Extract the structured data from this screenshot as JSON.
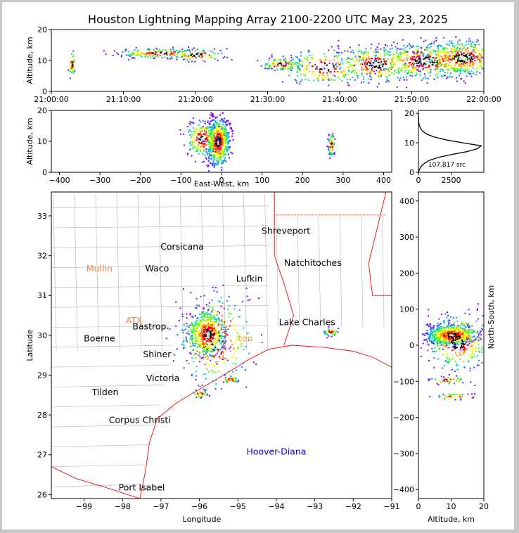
{
  "title": "Houston Lightning Mapping Array 2100-2200 UTC May 23, 2025",
  "chart_data": [
    {
      "id": "time-height",
      "type": "scatter",
      "xlabel": "",
      "ylabel": "Altitude, km",
      "x_ticks": [
        "21:00:00",
        "21:10:00",
        "21:20:00",
        "21:30:00",
        "21:40:00",
        "21:50:00",
        "22:00:00"
      ],
      "xlim": [
        0,
        60
      ],
      "ylim": [
        0,
        20
      ],
      "y_ticks": [
        0,
        10,
        20
      ],
      "clusters": [
        {
          "t": 2.8,
          "alt": 9,
          "spread_t": 0.2,
          "spread_alt": 2,
          "n": 40
        },
        {
          "t": 15,
          "alt": 12.5,
          "spread_t": 3,
          "spread_alt": 0.8,
          "n": 180
        },
        {
          "t": 20,
          "alt": 12,
          "spread_t": 2,
          "spread_alt": 1,
          "n": 90
        },
        {
          "t": 32,
          "alt": 9,
          "spread_t": 1.5,
          "spread_alt": 1,
          "n": 120
        },
        {
          "t": 38,
          "alt": 8,
          "spread_t": 3,
          "spread_alt": 3,
          "n": 200
        },
        {
          "t": 45,
          "alt": 9,
          "spread_t": 3,
          "spread_alt": 3,
          "n": 300
        },
        {
          "t": 52,
          "alt": 10,
          "spread_t": 4,
          "spread_alt": 3,
          "n": 450
        },
        {
          "t": 57,
          "alt": 11,
          "spread_t": 3,
          "spread_alt": 3,
          "n": 450
        }
      ]
    },
    {
      "id": "ew-height",
      "type": "scatter",
      "xlabel": "East-West, km",
      "ylabel": "Altitude, km",
      "xlim": [
        -420,
        420
      ],
      "ylim": [
        0,
        20
      ],
      "x_ticks": [
        -400,
        -300,
        -200,
        -100,
        0,
        100,
        200,
        300,
        400
      ],
      "y_ticks": [
        0,
        10,
        20
      ],
      "clusters": [
        {
          "x": -10,
          "alt": 10,
          "spread_x": 15,
          "spread_alt": 4,
          "n": 600
        },
        {
          "x": -50,
          "alt": 11,
          "spread_x": 20,
          "spread_alt": 3,
          "n": 200
        },
        {
          "x": 270,
          "alt": 9,
          "spread_x": 4,
          "spread_alt": 2,
          "n": 70
        }
      ]
    },
    {
      "id": "altitude-histogram",
      "type": "line",
      "annotation": "107,817 src",
      "xlim": [
        0,
        5000
      ],
      "ylim": [
        0,
        21
      ],
      "x_ticks": [
        0,
        2500
      ],
      "y_ticks": [
        0,
        10,
        20
      ],
      "alt": [
        0,
        1,
        2,
        3,
        4,
        5,
        6,
        7,
        8,
        9,
        10,
        11,
        12,
        13,
        14,
        15,
        16,
        17,
        18,
        19,
        20
      ],
      "count": [
        0,
        80,
        200,
        450,
        800,
        1500,
        2500,
        3700,
        4500,
        4800,
        3400,
        2100,
        1200,
        600,
        300,
        150,
        60,
        25,
        10,
        5,
        0
      ]
    },
    {
      "id": "plan-view",
      "type": "scatter",
      "xlabel": "Longitude",
      "ylabel": "Latitude",
      "xlim": [
        -99.85,
        -91.0
      ],
      "ylim": [
        25.9,
        33.6
      ],
      "x_ticks": [
        -99,
        -98,
        -97,
        -96,
        -95,
        -94,
        -93,
        -92,
        -91
      ],
      "y_ticks": [
        26,
        27,
        28,
        29,
        30,
        31,
        32,
        33
      ],
      "clusters": [
        {
          "lon": -95.8,
          "lat": 30.05,
          "spread_lon": 0.25,
          "spread_lat": 0.3,
          "n": 500
        },
        {
          "lon": -95.6,
          "lat": 29.9,
          "spread_lon": 0.5,
          "spread_lat": 0.6,
          "n": 300
        },
        {
          "lon": -95.2,
          "lat": 28.9,
          "spread_lon": 0.1,
          "spread_lat": 0.05,
          "n": 40
        },
        {
          "lon": -96.0,
          "lat": 28.55,
          "spread_lon": 0.1,
          "spread_lat": 0.05,
          "n": 40
        },
        {
          "lon": -92.6,
          "lat": 30.1,
          "spread_lon": 0.1,
          "spread_lat": 0.05,
          "n": 40
        }
      ],
      "cities": [
        {
          "name": "Shreveport",
          "lon": -93.75,
          "lat": 32.55,
          "color": "#000000"
        },
        {
          "name": "Corsicana",
          "lon": -96.45,
          "lat": 32.15,
          "color": "#000000"
        },
        {
          "name": "Natchitoches",
          "lon": -93.05,
          "lat": 31.75,
          "color": "#000000"
        },
        {
          "name": "Mullin",
          "lon": -98.6,
          "lat": 31.6,
          "color": "#f08040"
        },
        {
          "name": "Waco",
          "lon": -97.1,
          "lat": 31.6,
          "color": "#000000"
        },
        {
          "name": "Lufkin",
          "lon": -94.7,
          "lat": 31.35,
          "color": "#000000"
        },
        {
          "name": "ATX",
          "lon": -97.7,
          "lat": 30.3,
          "color": "#f08040"
        },
        {
          "name": "Bastrop",
          "lon": -97.3,
          "lat": 30.15,
          "color": "#000000"
        },
        {
          "name": "Lake Charles",
          "lon": -93.2,
          "lat": 30.25,
          "color": "#000000"
        },
        {
          "name": "Boerne",
          "lon": -98.6,
          "lat": 29.85,
          "color": "#000000"
        },
        {
          "name": "ton",
          "lon": -94.8,
          "lat": 29.85,
          "color": "#f0a020"
        },
        {
          "name": "Shiner",
          "lon": -97.1,
          "lat": 29.45,
          "color": "#000000"
        },
        {
          "name": "Victoria",
          "lon": -96.95,
          "lat": 28.85,
          "color": "#000000"
        },
        {
          "name": "Tilden",
          "lon": -98.45,
          "lat": 28.5,
          "color": "#000000"
        },
        {
          "name": "Corpus Christi",
          "lon": -97.55,
          "lat": 27.8,
          "color": "#000000"
        },
        {
          "name": "Hoover-Diana",
          "lon": -94.0,
          "lat": 27.0,
          "color": "#0000ff"
        },
        {
          "name": "Port Isabel",
          "lon": -97.5,
          "lat": 26.1,
          "color": "#000000"
        }
      ]
    },
    {
      "id": "ns-height",
      "type": "scatter",
      "xlabel": "Altitude, km",
      "ylabel": "North-South, km",
      "xlim": [
        0,
        20
      ],
      "ylim": [
        -425,
        425
      ],
      "x_ticks": [
        0,
        10,
        20
      ],
      "y_ticks": [
        -400,
        -300,
        -200,
        -100,
        0,
        100,
        200,
        300,
        400
      ],
      "clusters": [
        {
          "alt": 10,
          "y": 30,
          "spread_alt": 4,
          "spread_y": 15,
          "n": 600
        },
        {
          "alt": 12,
          "y": 10,
          "spread_alt": 5,
          "spread_y": 40,
          "n": 300
        },
        {
          "alt": 9,
          "y": -95,
          "spread_alt": 3,
          "spread_y": 5,
          "n": 40
        },
        {
          "alt": 11,
          "y": -140,
          "spread_alt": 3,
          "spread_y": 4,
          "n": 40
        }
      ]
    }
  ],
  "colors": {
    "scale": [
      "#7f00ff",
      "#3f3fff",
      "#0099ff",
      "#00d9a0",
      "#55ff00",
      "#ffff00",
      "#ff9900",
      "#ff0000",
      "#000000",
      "#cccccc"
    ],
    "border_state": "#ff0000",
    "border_county": "#b4b4b4"
  }
}
